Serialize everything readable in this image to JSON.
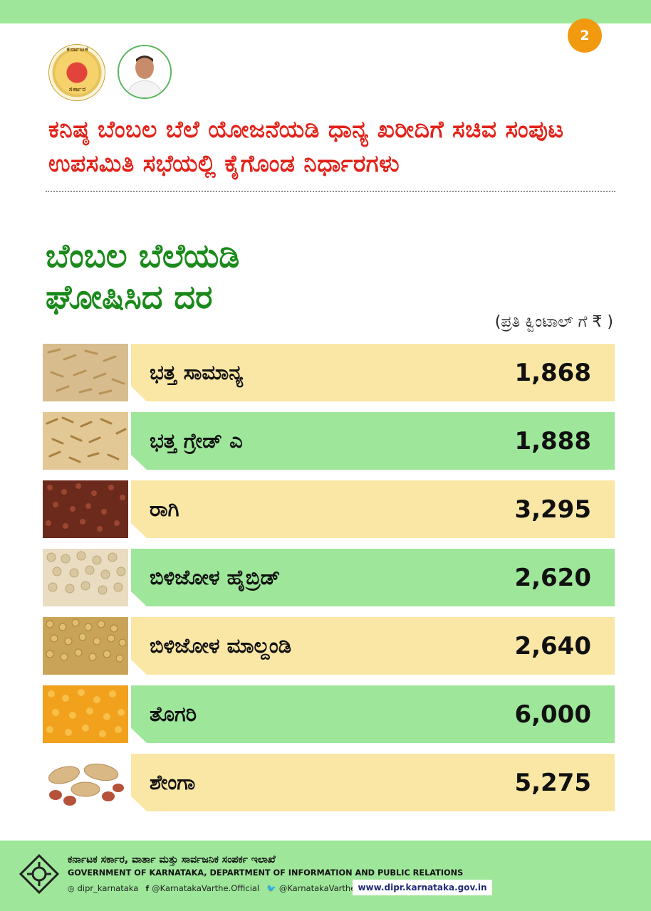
{
  "page_number": "2",
  "emblem": {
    "top_text": "ಕರ್ನಾಟಕ",
    "bottom_text": "ಸರ್ಕಾರ"
  },
  "headline": "ಕನಿಷ್ಠ ಬೆಂಬಲ ಬೆಲೆ ಯೋಜನೆಯಡಿ ಧಾನ್ಯ ಖರೀದಿಗೆ ಸಚಿವ ಸಂಪುಟ ಉಪಸಮಿತಿ ಸಭೆಯಲ್ಲಿ ಕೈಗೊಂಡ ನಿರ್ಧಾರಗಳು",
  "section_title_line1": "ಬೆಂಬಲ ಬೆಲೆಯಡಿ",
  "section_title_line2": "ಘೋಷಿಸಿದ ದರ",
  "unit_note": "(ಪ್ರತಿ ಕ್ವಿಂಟಾಲ್ ಗೆ ₹ )",
  "crops": [
    {
      "name": "ಭತ್ತ ಸಾಮಾನ್ಯ",
      "price": "1,868",
      "image": "paddy-icon",
      "bar_color": "yellow"
    },
    {
      "name": "ಭತ್ತ ಗ್ರೇಡ್ ಎ",
      "price": "1,888",
      "image": "paddy-grade-a-icon",
      "bar_color": "green"
    },
    {
      "name": "ರಾಗಿ",
      "price": "3,295",
      "image": "ragi-icon",
      "bar_color": "yellow"
    },
    {
      "name": "ಬಿಳಿಜೋಳ ಹೈಬ್ರಿಡ್",
      "price": "2,620",
      "image": "jowar-hybrid-icon",
      "bar_color": "green"
    },
    {
      "name": "ಬಿಳಿಜೋಳ ಮಾಲ್ದಂಡಿ",
      "price": "2,640",
      "image": "jowar-maldandi-icon",
      "bar_color": "yellow"
    },
    {
      "name": "ತೊಗರಿ",
      "price": "6,000",
      "image": "tur-dal-icon",
      "bar_color": "green"
    },
    {
      "name": "ಶೇಂಗಾ",
      "price": "5,275",
      "image": "groundnut-icon",
      "bar_color": "yellow"
    }
  ],
  "footer": {
    "dept_kannada": "ಕರ್ನಾಟಕ ಸರ್ಕಾರ, ವಾರ್ತಾ ಮತ್ತು ಸಾರ್ವಜನಿಕ ಸಂಪರ್ಕ ಇಲಾಖೆ",
    "dept_english": "GOVERNMENT OF KARNATAKA, DEPARTMENT OF INFORMATION AND PUBLIC RELATIONS",
    "instagram": "dipr_karnataka",
    "facebook": "@KarnatakaVarthe.Official",
    "twitter": "@KarnatakaVarthe",
    "website": "www.dipr.karnataka.gov.in"
  },
  "colors": {
    "green_bar": "#9ee79a",
    "yellow_bar": "#fae7a5",
    "headline_red": "#e2231a",
    "title_green": "#1a8a1a",
    "badge_orange": "#f29a0f"
  }
}
